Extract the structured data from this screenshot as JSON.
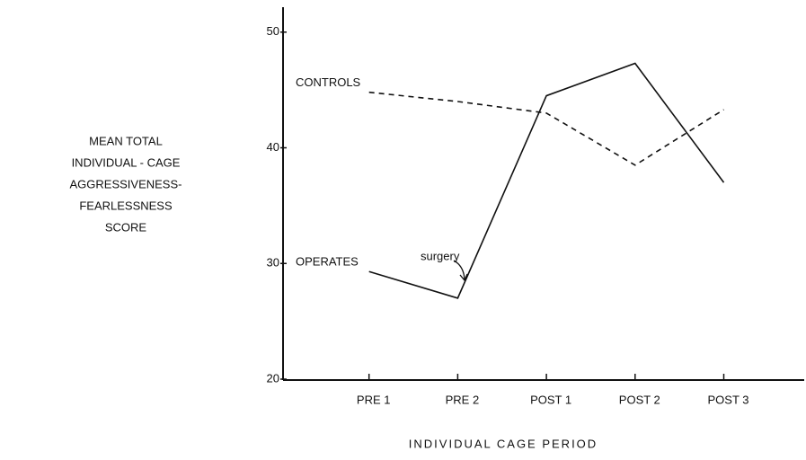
{
  "chart_data": {
    "type": "line",
    "y_label": [
      "MEAN TOTAL",
      "INDIVIDUAL - CAGE",
      "AGGRESSIVENESS-",
      "FEARLESSNESS",
      "SCORE"
    ],
    "x_label": "INDIVIDUAL CAGE PERIOD",
    "categories": [
      "PRE 1",
      "PRE 2",
      "POST 1",
      "POST 2",
      "POST 3"
    ],
    "series": [
      {
        "name": "CONTROLS",
        "color": "#111111",
        "style": "dashed",
        "values": [
          44.8,
          44.0,
          43.0,
          38.5,
          43.3
        ]
      },
      {
        "name": "OPERATES",
        "color": "#111111",
        "style": "solid",
        "values": [
          29.3,
          27.0,
          44.5,
          47.3,
          37.0
        ]
      }
    ],
    "annotations": [
      "surgery"
    ],
    "ylim": [
      20,
      52
    ],
    "yticks": [
      20,
      30,
      40,
      50
    ],
    "grid": false
  }
}
